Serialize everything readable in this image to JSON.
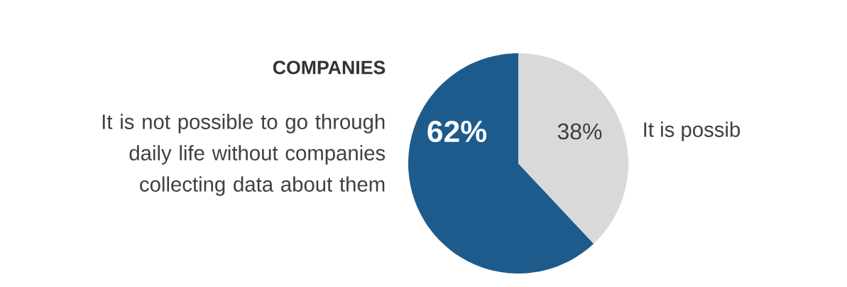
{
  "chart_data": {
    "type": "pie",
    "title": "COMPANIES",
    "categories": [
      "It is not possible to go through daily life without companies collecting data about them",
      "It is possib"
    ],
    "values": [
      62,
      38
    ],
    "colors": [
      "#1d5b8c",
      "#d9d9d9"
    ],
    "value_labels": [
      "62%",
      "38%"
    ]
  }
}
